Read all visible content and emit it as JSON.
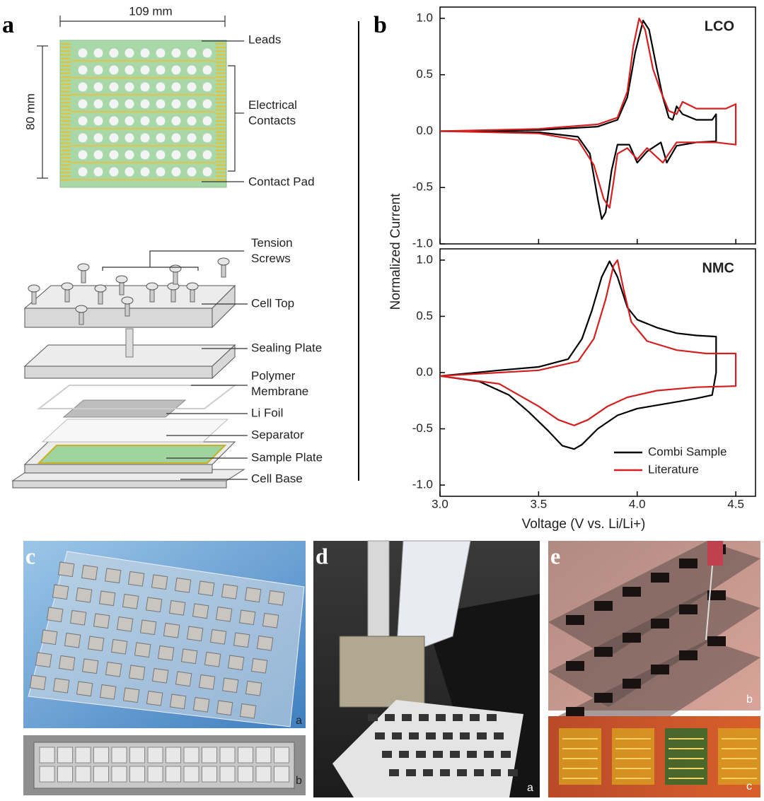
{
  "panels": [
    "a",
    "b",
    "c",
    "d",
    "e"
  ],
  "panel_a": {
    "width_label": "109 mm",
    "height_label": "80 mm",
    "callouts_top": {
      "leads": "Leads",
      "electrical_contacts": [
        "Electrical",
        "Contacts"
      ],
      "contact_pad": "Contact Pad"
    },
    "callouts_cell": {
      "tension_screws": [
        "Tension",
        "Screws"
      ],
      "cell_top": "Cell Top",
      "sealing_plate": "Sealing Plate",
      "polymer_membrane": [
        "Polymer",
        "Membrane"
      ],
      "li_foil": "Li Foil",
      "separator": "Separator",
      "sample_plate": "Sample Plate",
      "cell_base": "Cell Base"
    }
  },
  "photo_labels": {
    "c": [
      "a",
      "b"
    ],
    "d": [
      "a"
    ],
    "e": [
      "b",
      "c"
    ]
  },
  "chart_data": [
    {
      "type": "line",
      "label": "LCO",
      "ylabel": "Normalized Current",
      "xlim": [
        3.0,
        4.6
      ],
      "ylim": [
        -1.0,
        1.1
      ],
      "yticks": [
        {
          "value": -1.0,
          "label": "-1.0"
        },
        -0.5,
        {
          "value": 0.0,
          "label": "0.0"
        },
        0.5,
        {
          "value": 1.0,
          "label": "1.0"
        }
      ],
      "series": [
        {
          "color": "#000000",
          "x": [
            3.0,
            3.5,
            3.8,
            3.9,
            3.95,
            3.99,
            4.03,
            4.06,
            4.1,
            4.13,
            4.16,
            4.18,
            4.2,
            4.23,
            4.3,
            4.38,
            4.4,
            4.4,
            4.3,
            4.2,
            4.17,
            4.15,
            4.12,
            4.05,
            4.0,
            3.96,
            3.9,
            3.87,
            3.84,
            3.82,
            3.8,
            3.76,
            3.7,
            3.5,
            3.0
          ],
          "values": [
            0.0,
            0.01,
            0.04,
            0.1,
            0.3,
            0.7,
            0.98,
            0.9,
            0.55,
            0.3,
            0.12,
            0.1,
            0.22,
            0.15,
            0.1,
            0.1,
            0.15,
            -0.09,
            -0.1,
            -0.13,
            -0.22,
            -0.28,
            -0.1,
            -0.18,
            -0.28,
            -0.12,
            -0.12,
            -0.35,
            -0.72,
            -0.78,
            -0.6,
            -0.2,
            -0.05,
            -0.01,
            0.0
          ]
        },
        {
          "color": "#d42020",
          "x": [
            3.0,
            3.5,
            3.8,
            3.9,
            3.95,
            3.98,
            4.01,
            4.04,
            4.08,
            4.12,
            4.16,
            4.2,
            4.23,
            4.3,
            4.45,
            4.5,
            4.5,
            4.4,
            4.2,
            4.16,
            4.13,
            4.05,
            4.0,
            3.95,
            3.9,
            3.88,
            3.86,
            3.83,
            3.78,
            3.7,
            3.5,
            3.0
          ],
          "values": [
            0.0,
            0.02,
            0.06,
            0.12,
            0.35,
            0.75,
            1.0,
            0.9,
            0.55,
            0.35,
            0.18,
            0.15,
            0.26,
            0.2,
            0.2,
            0.24,
            -0.12,
            -0.1,
            -0.1,
            -0.2,
            -0.28,
            -0.15,
            -0.25,
            -0.15,
            -0.2,
            -0.45,
            -0.68,
            -0.6,
            -0.3,
            -0.08,
            -0.02,
            0.0
          ]
        }
      ]
    },
    {
      "type": "line",
      "label": "NMC",
      "xlabel": "Voltage (V vs. Li/Li+)",
      "xlim": [
        3.0,
        4.6
      ],
      "ylim": [
        -1.1,
        1.1
      ],
      "xticks": [
        {
          "value": 3.0,
          "label": "3.0"
        },
        3.5,
        {
          "value": 4.0,
          "label": "4.0"
        },
        4.5
      ],
      "yticks": [
        {
          "value": -1.0,
          "label": "-1.0"
        },
        -0.5,
        {
          "value": 0.0,
          "label": "0.0"
        },
        0.5,
        {
          "value": 1.0,
          "label": "1.0"
        }
      ],
      "legend": "lower right",
      "series": [
        {
          "name": "Combi Sample",
          "color": "#000000",
          "x": [
            3.0,
            3.3,
            3.5,
            3.65,
            3.72,
            3.77,
            3.82,
            3.86,
            3.9,
            3.95,
            4.0,
            4.1,
            4.2,
            4.3,
            4.4,
            4.4,
            4.38,
            4.3,
            4.2,
            4.0,
            3.9,
            3.8,
            3.72,
            3.68,
            3.62,
            3.55,
            3.45,
            3.35,
            3.2,
            3.0
          ],
          "values": [
            -0.03,
            0.02,
            0.05,
            0.12,
            0.3,
            0.55,
            0.85,
            0.99,
            0.85,
            0.58,
            0.47,
            0.4,
            0.35,
            0.33,
            0.32,
            0.0,
            -0.2,
            -0.23,
            -0.26,
            -0.32,
            -0.38,
            -0.5,
            -0.64,
            -0.68,
            -0.65,
            -0.52,
            -0.35,
            -0.2,
            -0.08,
            -0.03
          ]
        },
        {
          "name": "Literature",
          "color": "#d42020",
          "x": [
            3.0,
            3.3,
            3.5,
            3.7,
            3.78,
            3.84,
            3.88,
            3.9,
            3.93,
            3.97,
            4.05,
            4.2,
            4.35,
            4.5,
            4.5,
            4.3,
            4.1,
            3.95,
            3.85,
            3.75,
            3.68,
            3.6,
            3.5,
            3.3,
            3.0
          ],
          "values": [
            -0.03,
            0.0,
            0.02,
            0.1,
            0.3,
            0.65,
            0.95,
            1.0,
            0.75,
            0.45,
            0.28,
            0.2,
            0.17,
            0.17,
            -0.12,
            -0.13,
            -0.16,
            -0.22,
            -0.3,
            -0.42,
            -0.47,
            -0.42,
            -0.3,
            -0.1,
            -0.03
          ]
        }
      ]
    }
  ]
}
